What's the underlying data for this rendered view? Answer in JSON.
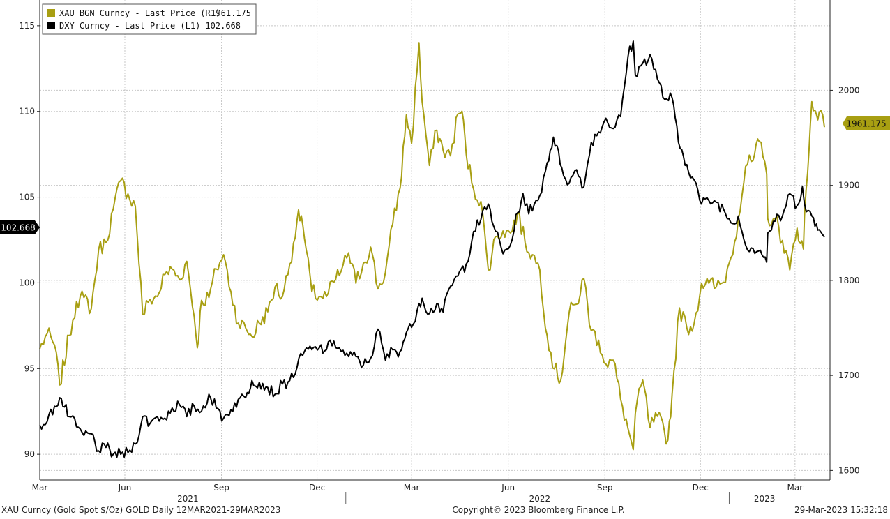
{
  "chart_data": {
    "type": "line",
    "legend": [
      {
        "label": "XAU BGN Curncy - Last Price (R1)",
        "value": "1961.175",
        "color": "#a89f12"
      },
      {
        "label": "DXY Curncy - Last Price (L1)",
        "value": "102.668",
        "color": "#000000"
      }
    ],
    "left_axis": {
      "ticks": [
        "90",
        "95",
        "100",
        "105",
        "110",
        "115"
      ],
      "ylim": [
        88.5,
        116.5
      ]
    },
    "right_axis": {
      "ticks": [
        "1600",
        "1700",
        "1800",
        "1900",
        "2000"
      ],
      "ylim": [
        1590,
        2095
      ]
    },
    "x_axis": {
      "range": [
        "2021-03-12",
        "2023-03-29"
      ],
      "month_ticks": [
        {
          "label": "Mar",
          "date": "2021-03-12"
        },
        {
          "label": "Jun",
          "date": "2021-06-01"
        },
        {
          "label": "Sep",
          "date": "2021-09-01"
        },
        {
          "label": "Dec",
          "date": "2021-12-01"
        },
        {
          "label": "Mar",
          "date": "2022-03-01"
        },
        {
          "label": "Jun",
          "date": "2022-06-01"
        },
        {
          "label": "Sep",
          "date": "2022-09-01"
        },
        {
          "label": "Dec",
          "date": "2022-12-01"
        },
        {
          "label": "Mar",
          "date": "2023-03-01"
        }
      ],
      "years": [
        {
          "label": "2021",
          "date": "2021-07-31"
        },
        {
          "label": "2022",
          "date": "2022-07-01"
        },
        {
          "label": "2023",
          "date": "2023-01-31"
        }
      ]
    },
    "last_value_tags": {
      "left": "102.668",
      "right": "1961.175"
    },
    "grid": true,
    "series": [
      {
        "name": "XAU BGN Curncy - Last Price (R1)",
        "axis": "right",
        "color": "#a89f12",
        "points": [
          [
            "2021-03-12",
            1728
          ],
          [
            "2021-03-19",
            1744
          ],
          [
            "2021-03-26",
            1732
          ],
          [
            "2021-03-31",
            1690
          ],
          [
            "2021-04-09",
            1742
          ],
          [
            "2021-04-16",
            1778
          ],
          [
            "2021-04-23",
            1782
          ],
          [
            "2021-04-30",
            1770
          ],
          [
            "2021-05-07",
            1832
          ],
          [
            "2021-05-14",
            1840
          ],
          [
            "2021-05-21",
            1875
          ],
          [
            "2021-05-28",
            1905
          ],
          [
            "2021-06-04",
            1891
          ],
          [
            "2021-06-11",
            1878
          ],
          [
            "2021-06-18",
            1764
          ],
          [
            "2021-06-25",
            1780
          ],
          [
            "2021-07-02",
            1783
          ],
          [
            "2021-07-09",
            1806
          ],
          [
            "2021-07-16",
            1812
          ],
          [
            "2021-07-23",
            1801
          ],
          [
            "2021-07-30",
            1820
          ],
          [
            "2021-08-06",
            1762
          ],
          [
            "2021-08-09",
            1729
          ],
          [
            "2021-08-13",
            1779
          ],
          [
            "2021-08-20",
            1782
          ],
          [
            "2021-08-27",
            1812
          ],
          [
            "2021-09-03",
            1827
          ],
          [
            "2021-09-10",
            1788
          ],
          [
            "2021-09-17",
            1755
          ],
          [
            "2021-09-24",
            1750
          ],
          [
            "2021-09-30",
            1741
          ],
          [
            "2021-10-07",
            1755
          ],
          [
            "2021-10-15",
            1767
          ],
          [
            "2021-10-22",
            1793
          ],
          [
            "2021-10-29",
            1783
          ],
          [
            "2021-11-05",
            1817
          ],
          [
            "2021-11-12",
            1864
          ],
          [
            "2021-11-16",
            1868
          ],
          [
            "2021-11-19",
            1844
          ],
          [
            "2021-11-26",
            1788
          ],
          [
            "2021-12-03",
            1783
          ],
          [
            "2021-12-10",
            1783
          ],
          [
            "2021-12-17",
            1798
          ],
          [
            "2021-12-24",
            1810
          ],
          [
            "2021-12-31",
            1829
          ],
          [
            "2022-01-07",
            1797
          ],
          [
            "2022-01-14",
            1818
          ],
          [
            "2022-01-21",
            1835
          ],
          [
            "2022-01-28",
            1791
          ],
          [
            "2022-02-04",
            1808
          ],
          [
            "2022-02-11",
            1859
          ],
          [
            "2022-02-18",
            1897
          ],
          [
            "2022-02-24",
            1974
          ],
          [
            "2022-03-01",
            1944
          ],
          [
            "2022-03-08",
            2050
          ],
          [
            "2022-03-11",
            1988
          ],
          [
            "2022-03-18",
            1921
          ],
          [
            "2022-03-25",
            1958
          ],
          [
            "2022-03-31",
            1937
          ],
          [
            "2022-04-07",
            1931
          ],
          [
            "2022-04-14",
            1975
          ],
          [
            "2022-04-18",
            1978
          ],
          [
            "2022-04-22",
            1933
          ],
          [
            "2022-04-29",
            1896
          ],
          [
            "2022-05-06",
            1883
          ],
          [
            "2022-05-13",
            1811
          ],
          [
            "2022-05-20",
            1846
          ],
          [
            "2022-05-27",
            1852
          ],
          [
            "2022-06-03",
            1850
          ],
          [
            "2022-06-10",
            1871
          ],
          [
            "2022-06-17",
            1840
          ],
          [
            "2022-06-24",
            1827
          ],
          [
            "2022-07-01",
            1811
          ],
          [
            "2022-07-08",
            1742
          ],
          [
            "2022-07-15",
            1707
          ],
          [
            "2022-07-21",
            1695
          ],
          [
            "2022-07-29",
            1766
          ],
          [
            "2022-08-05",
            1775
          ],
          [
            "2022-08-12",
            1802
          ],
          [
            "2022-08-19",
            1747
          ],
          [
            "2022-08-26",
            1737
          ],
          [
            "2022-09-02",
            1712
          ],
          [
            "2022-09-09",
            1716
          ],
          [
            "2022-09-16",
            1675
          ],
          [
            "2022-09-23",
            1644
          ],
          [
            "2022-09-28",
            1622
          ],
          [
            "2022-09-30",
            1660
          ],
          [
            "2022-10-07",
            1695
          ],
          [
            "2022-10-14",
            1645
          ],
          [
            "2022-10-21",
            1657
          ],
          [
            "2022-10-31",
            1632
          ],
          [
            "2022-11-04",
            1680
          ],
          [
            "2022-11-11",
            1771
          ],
          [
            "2022-11-18",
            1750
          ],
          [
            "2022-11-25",
            1755
          ],
          [
            "2022-12-02",
            1797
          ],
          [
            "2022-12-09",
            1797
          ],
          [
            "2022-12-16",
            1793
          ],
          [
            "2022-12-23",
            1798
          ],
          [
            "2022-12-30",
            1824
          ],
          [
            "2023-01-06",
            1865
          ],
          [
            "2023-01-13",
            1920
          ],
          [
            "2023-01-20",
            1926
          ],
          [
            "2023-01-26",
            1946
          ],
          [
            "2023-02-02",
            1912
          ],
          [
            "2023-02-03",
            1865
          ],
          [
            "2023-02-10",
            1865
          ],
          [
            "2023-02-17",
            1842
          ],
          [
            "2023-02-24",
            1811
          ],
          [
            "2023-03-03",
            1855
          ],
          [
            "2023-03-09",
            1833
          ],
          [
            "2023-03-10",
            1868
          ],
          [
            "2023-03-13",
            1913
          ],
          [
            "2023-03-17",
            1988
          ],
          [
            "2023-03-20",
            1979
          ],
          [
            "2023-03-24",
            1977
          ],
          [
            "2023-03-29",
            1961.175
          ]
        ]
      },
      {
        "name": "DXY Curncy - Last Price (L1)",
        "axis": "left",
        "color": "#000000",
        "points": [
          [
            "2021-03-12",
            91.7
          ],
          [
            "2021-03-19",
            91.9
          ],
          [
            "2021-03-26",
            92.8
          ],
          [
            "2021-03-31",
            93.3
          ],
          [
            "2021-04-09",
            92.2
          ],
          [
            "2021-04-16",
            91.6
          ],
          [
            "2021-04-23",
            91.1
          ],
          [
            "2021-04-30",
            91.2
          ],
          [
            "2021-05-07",
            90.2
          ],
          [
            "2021-05-14",
            90.4
          ],
          [
            "2021-05-21",
            90.0
          ],
          [
            "2021-05-28",
            90.0
          ],
          [
            "2021-06-04",
            90.1
          ],
          [
            "2021-06-11",
            90.6
          ],
          [
            "2021-06-18",
            92.2
          ],
          [
            "2021-06-25",
            91.8
          ],
          [
            "2021-07-02",
            92.2
          ],
          [
            "2021-07-09",
            92.1
          ],
          [
            "2021-07-16",
            92.7
          ],
          [
            "2021-07-23",
            92.9
          ],
          [
            "2021-07-30",
            92.2
          ],
          [
            "2021-08-06",
            92.8
          ],
          [
            "2021-08-13",
            92.5
          ],
          [
            "2021-08-20",
            93.5
          ],
          [
            "2021-08-27",
            92.7
          ],
          [
            "2021-09-03",
            92.1
          ],
          [
            "2021-09-10",
            92.6
          ],
          [
            "2021-09-17",
            93.2
          ],
          [
            "2021-09-24",
            93.3
          ],
          [
            "2021-09-30",
            94.3
          ],
          [
            "2021-10-07",
            94.2
          ],
          [
            "2021-10-15",
            93.9
          ],
          [
            "2021-10-22",
            93.5
          ],
          [
            "2021-10-29",
            94.1
          ],
          [
            "2021-11-05",
            94.3
          ],
          [
            "2021-11-12",
            95.1
          ],
          [
            "2021-11-19",
            96.0
          ],
          [
            "2021-11-26",
            96.1
          ],
          [
            "2021-12-03",
            96.2
          ],
          [
            "2021-12-10",
            96.1
          ],
          [
            "2021-12-17",
            96.6
          ],
          [
            "2021-12-24",
            96.0
          ],
          [
            "2021-12-31",
            95.7
          ],
          [
            "2022-01-07",
            95.7
          ],
          [
            "2022-01-14",
            95.2
          ],
          [
            "2022-01-21",
            95.6
          ],
          [
            "2022-01-28",
            97.3
          ],
          [
            "2022-02-04",
            95.5
          ],
          [
            "2022-02-11",
            96.1
          ],
          [
            "2022-02-18",
            96.0
          ],
          [
            "2022-02-24",
            97.1
          ],
          [
            "2022-03-01",
            97.4
          ],
          [
            "2022-03-08",
            98.8
          ],
          [
            "2022-03-11",
            99.1
          ],
          [
            "2022-03-18",
            98.2
          ],
          [
            "2022-03-25",
            98.8
          ],
          [
            "2022-03-31",
            98.3
          ],
          [
            "2022-04-07",
            99.8
          ],
          [
            "2022-04-14",
            100.4
          ],
          [
            "2022-04-22",
            101.1
          ],
          [
            "2022-04-29",
            103.0
          ],
          [
            "2022-05-06",
            103.7
          ],
          [
            "2022-05-13",
            104.6
          ],
          [
            "2022-05-20",
            103.0
          ],
          [
            "2022-05-27",
            101.7
          ],
          [
            "2022-06-03",
            102.2
          ],
          [
            "2022-06-10",
            104.1
          ],
          [
            "2022-06-15",
            105.2
          ],
          [
            "2022-06-17",
            104.5
          ],
          [
            "2022-06-24",
            104.2
          ],
          [
            "2022-07-01",
            105.1
          ],
          [
            "2022-07-08",
            107.0
          ],
          [
            "2022-07-14",
            108.5
          ],
          [
            "2022-07-22",
            106.7
          ],
          [
            "2022-07-29",
            105.8
          ],
          [
            "2022-08-05",
            106.6
          ],
          [
            "2022-08-12",
            105.6
          ],
          [
            "2022-08-19",
            108.2
          ],
          [
            "2022-08-26",
            108.8
          ],
          [
            "2022-09-02",
            109.6
          ],
          [
            "2022-09-09",
            109.0
          ],
          [
            "2022-09-16",
            109.7
          ],
          [
            "2022-09-23",
            113.2
          ],
          [
            "2022-09-28",
            114.1
          ],
          [
            "2022-09-30",
            112.1
          ],
          [
            "2022-10-07",
            112.8
          ],
          [
            "2022-10-14",
            113.3
          ],
          [
            "2022-10-21",
            111.9
          ],
          [
            "2022-10-28",
            110.7
          ],
          [
            "2022-11-04",
            110.8
          ],
          [
            "2022-11-10",
            108.2
          ],
          [
            "2022-11-18",
            106.9
          ],
          [
            "2022-11-25",
            106.0
          ],
          [
            "2022-12-02",
            104.6
          ],
          [
            "2022-12-09",
            104.8
          ],
          [
            "2022-12-16",
            104.7
          ],
          [
            "2022-12-23",
            104.3
          ],
          [
            "2022-12-30",
            103.5
          ],
          [
            "2023-01-06",
            103.9
          ],
          [
            "2023-01-13",
            102.2
          ],
          [
            "2023-01-20",
            102.0
          ],
          [
            "2023-01-27",
            101.9
          ],
          [
            "2023-02-02",
            101.2
          ],
          [
            "2023-02-03",
            102.9
          ],
          [
            "2023-02-10",
            103.6
          ],
          [
            "2023-02-17",
            103.9
          ],
          [
            "2023-02-24",
            105.2
          ],
          [
            "2023-03-03",
            104.5
          ],
          [
            "2023-03-08",
            105.6
          ],
          [
            "2023-03-10",
            104.6
          ],
          [
            "2023-03-17",
            103.9
          ],
          [
            "2023-03-20",
            103.3
          ],
          [
            "2023-03-24",
            103.1
          ],
          [
            "2023-03-29",
            102.668
          ]
        ]
      }
    ]
  },
  "footer": {
    "left": "XAU Curncy (Gold Spot  $/Oz) GOLD  Daily 12MAR2021-29MAR2023",
    "center": "Copyright© 2023 Bloomberg Finance L.P.",
    "right": "29-Mar-2023 15:32:18"
  },
  "colors": {
    "gold": "#a89f12",
    "dxy": "#000000",
    "background": "#ffffff",
    "grid": "#c8c8c8"
  }
}
